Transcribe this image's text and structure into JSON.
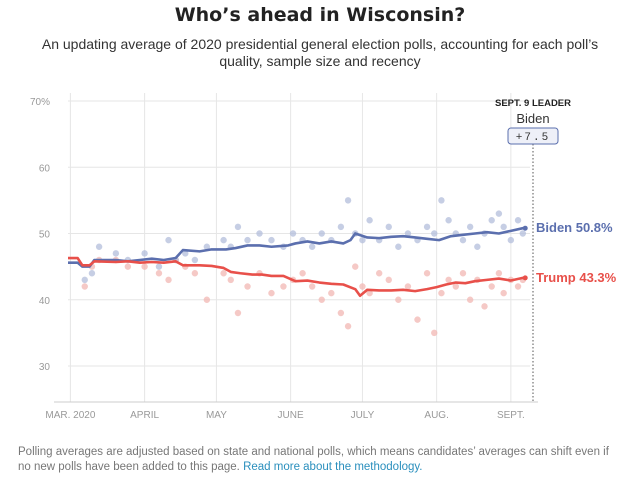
{
  "title": "Who’s ahead in Wisconsin?",
  "subtitle": "An updating average of 2020 presidential general election polls, accounting for each poll’s quality, sample size and recency",
  "footer": {
    "text": "Polling averages are adjusted based on state and national polls, which means candidates’ averages can shift even if no new polls have been added to this page.",
    "link": "Read more about the methodology."
  },
  "leader": {
    "heading": "SEPT. 9 LEADER",
    "name": "Biden",
    "margin": "+7.5"
  },
  "colors": {
    "biden": "#5b6fae",
    "trump": "#e8504a",
    "biden_dot": "#b3bedb",
    "trump_dot": "#f2b7b3"
  },
  "chart_data": {
    "type": "line",
    "x_type": "day-of-year-2020",
    "x_ticks": [
      {
        "day": 61,
        "label": "MAR. 2020"
      },
      {
        "day": 92,
        "label": "APRIL"
      },
      {
        "day": 122,
        "label": "MAY"
      },
      {
        "day": 153,
        "label": "JUNE"
      },
      {
        "day": 183,
        "label": "JULY"
      },
      {
        "day": 214,
        "label": "AUG."
      },
      {
        "day": 245,
        "label": "SEPT."
      }
    ],
    "y_ticks": [
      30,
      40,
      50,
      60,
      70
    ],
    "y_tick_labels": [
      "30",
      "40",
      "50",
      "60",
      "70%"
    ],
    "xlim": [
      60,
      253
    ],
    "ylim": [
      25,
      71
    ],
    "grid": true,
    "series": [
      {
        "name": "Biden",
        "end_label": "Biden 50.8%",
        "points": [
          [
            60,
            45.6
          ],
          [
            64,
            45.6
          ],
          [
            66,
            45
          ],
          [
            69,
            45
          ],
          [
            71,
            46
          ],
          [
            80,
            46
          ],
          [
            85,
            45.8
          ],
          [
            90,
            46
          ],
          [
            95,
            46.2
          ],
          [
            100,
            46
          ],
          [
            105,
            46.3
          ],
          [
            108,
            47.5
          ],
          [
            115,
            47.3
          ],
          [
            120,
            47.6
          ],
          [
            126,
            47.6
          ],
          [
            130,
            47.8
          ],
          [
            135,
            48.2
          ],
          [
            140,
            48.2
          ],
          [
            145,
            48
          ],
          [
            152,
            48.2
          ],
          [
            155,
            48.5
          ],
          [
            160,
            48.8
          ],
          [
            165,
            48.5
          ],
          [
            170,
            48.8
          ],
          [
            175,
            48.5
          ],
          [
            178,
            49
          ],
          [
            180,
            50
          ],
          [
            185,
            49.4
          ],
          [
            190,
            49.3
          ],
          [
            195,
            49.5
          ],
          [
            200,
            49.6
          ],
          [
            205,
            49.4
          ],
          [
            210,
            49.2
          ],
          [
            215,
            49
          ],
          [
            220,
            49.6
          ],
          [
            225,
            49.8
          ],
          [
            230,
            50
          ],
          [
            235,
            50.2
          ],
          [
            240,
            50
          ],
          [
            245,
            50.4
          ],
          [
            250,
            50.8
          ],
          [
            251,
            50.8
          ]
        ]
      },
      {
        "name": "Trump",
        "end_label": "Trump 43.3%",
        "points": [
          [
            60,
            46.3
          ],
          [
            64,
            46.3
          ],
          [
            66,
            45.2
          ],
          [
            69,
            45.2
          ],
          [
            71,
            45.8
          ],
          [
            80,
            45.7
          ],
          [
            85,
            45.8
          ],
          [
            90,
            45.6
          ],
          [
            95,
            45.7
          ],
          [
            100,
            45.6
          ],
          [
            105,
            45.8
          ],
          [
            108,
            45.2
          ],
          [
            115,
            45.2
          ],
          [
            120,
            45.1
          ],
          [
            125,
            44.8
          ],
          [
            128,
            44.2
          ],
          [
            132,
            44
          ],
          [
            137,
            43.8
          ],
          [
            141,
            43.8
          ],
          [
            145,
            43.6
          ],
          [
            150,
            43.6
          ],
          [
            155,
            42.8
          ],
          [
            160,
            42.9
          ],
          [
            165,
            42.6
          ],
          [
            170,
            42.4
          ],
          [
            175,
            42.3
          ],
          [
            180,
            41.6
          ],
          [
            182,
            40.6
          ],
          [
            185,
            41.5
          ],
          [
            190,
            41.4
          ],
          [
            195,
            41.4
          ],
          [
            200,
            41.5
          ],
          [
            205,
            41.3
          ],
          [
            210,
            41.6
          ],
          [
            214,
            41.9
          ],
          [
            218,
            42.3
          ],
          [
            222,
            42.6
          ],
          [
            226,
            42.5
          ],
          [
            230,
            42.8
          ],
          [
            235,
            43
          ],
          [
            240,
            43.2
          ],
          [
            245,
            42.9
          ],
          [
            250,
            43.3
          ],
          [
            251,
            43.3
          ]
        ]
      }
    ],
    "polls": {
      "biden": [
        [
          67,
          43
        ],
        [
          70,
          44
        ],
        [
          73,
          48
        ],
        [
          80,
          47
        ],
        [
          85,
          46
        ],
        [
          92,
          47
        ],
        [
          98,
          45
        ],
        [
          102,
          49
        ],
        [
          105,
          46
        ],
        [
          109,
          47
        ],
        [
          113,
          46
        ],
        [
          118,
          48
        ],
        [
          125,
          49
        ],
        [
          128,
          48
        ],
        [
          131,
          51
        ],
        [
          135,
          49
        ],
        [
          140,
          50
        ],
        [
          145,
          49
        ],
        [
          150,
          48
        ],
        [
          154,
          50
        ],
        [
          158,
          49
        ],
        [
          162,
          48
        ],
        [
          166,
          50
        ],
        [
          170,
          49
        ],
        [
          174,
          51
        ],
        [
          177,
          55
        ],
        [
          180,
          50
        ],
        [
          183,
          49
        ],
        [
          186,
          52
        ],
        [
          190,
          49
        ],
        [
          194,
          51
        ],
        [
          198,
          48
        ],
        [
          202,
          50
        ],
        [
          206,
          49
        ],
        [
          210,
          51
        ],
        [
          213,
          50
        ],
        [
          216,
          55
        ],
        [
          219,
          52
        ],
        [
          222,
          50
        ],
        [
          225,
          49
        ],
        [
          228,
          51
        ],
        [
          231,
          48
        ],
        [
          234,
          50
        ],
        [
          237,
          52
        ],
        [
          240,
          53
        ],
        [
          242,
          51
        ],
        [
          245,
          49
        ],
        [
          248,
          52
        ],
        [
          250,
          50
        ]
      ],
      "trump": [
        [
          67,
          42
        ],
        [
          70,
          45
        ],
        [
          73,
          46
        ],
        [
          80,
          46
        ],
        [
          85,
          45
        ],
        [
          92,
          45
        ],
        [
          98,
          44
        ],
        [
          102,
          43
        ],
        [
          105,
          46
        ],
        [
          109,
          45
        ],
        [
          113,
          44
        ],
        [
          118,
          40
        ],
        [
          125,
          44
        ],
        [
          128,
          43
        ],
        [
          131,
          38
        ],
        [
          135,
          42
        ],
        [
          140,
          44
        ],
        [
          145,
          41
        ],
        [
          150,
          42
        ],
        [
          154,
          43
        ],
        [
          158,
          44
        ],
        [
          162,
          42
        ],
        [
          166,
          40
        ],
        [
          170,
          41
        ],
        [
          174,
          38
        ],
        [
          177,
          36
        ],
        [
          180,
          45
        ],
        [
          183,
          42
        ],
        [
          186,
          41
        ],
        [
          190,
          44
        ],
        [
          194,
          43
        ],
        [
          198,
          40
        ],
        [
          202,
          42
        ],
        [
          206,
          37
        ],
        [
          210,
          44
        ],
        [
          213,
          35
        ],
        [
          216,
          41
        ],
        [
          219,
          43
        ],
        [
          222,
          42
        ],
        [
          225,
          44
        ],
        [
          228,
          40
        ],
        [
          231,
          43
        ],
        [
          234,
          39
        ],
        [
          237,
          42
        ],
        [
          240,
          44
        ],
        [
          242,
          41
        ],
        [
          245,
          43
        ],
        [
          248,
          42
        ],
        [
          250,
          43
        ]
      ]
    }
  }
}
